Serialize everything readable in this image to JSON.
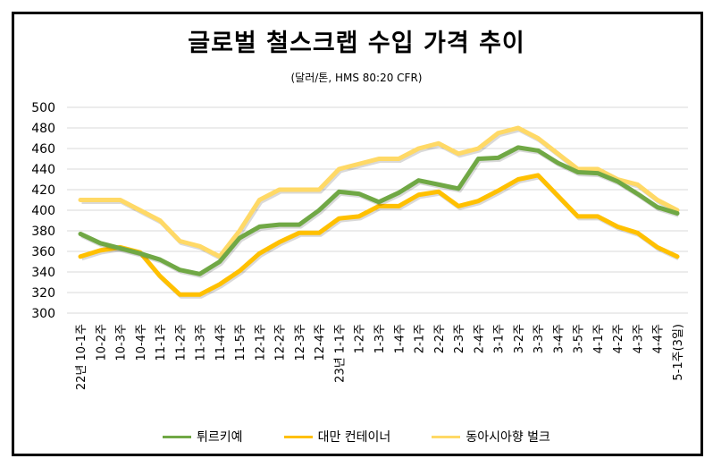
{
  "chart_data": {
    "type": "line",
    "title": "글로벌 철스크랩 수입 가격 추이",
    "subtitle": "(달러/톤, HMS 80:20  CFR)",
    "xlabel": "",
    "ylabel": "",
    "ylim": [
      300,
      500
    ],
    "yticks": [
      300,
      320,
      340,
      360,
      380,
      400,
      420,
      440,
      460,
      480,
      500
    ],
    "grid": true,
    "legend_position": "bottom",
    "categories": [
      "22년 10-1주",
      "10-2주",
      "10-3주",
      "10-4주",
      "11-1주",
      "11-2주",
      "11-3주",
      "11-4주",
      "11-5주",
      "12-1주",
      "12-2주",
      "12-3주",
      "12-4주",
      "23년 1-1주",
      "1-2주",
      "1-3주",
      "1-4주",
      "2-1주",
      "2-2주",
      "2-3주",
      "2-4주",
      "3-1주",
      "3-2주",
      "3-3주",
      "3-4주",
      "3-5주",
      "4-1주",
      "4-2주",
      "4-3주",
      "4-4주",
      "5-1주(3일)"
    ],
    "series": [
      {
        "name": "튀르키예",
        "color": "#70a845",
        "values": [
          377,
          368,
          363,
          358,
          352,
          342,
          338,
          350,
          373,
          384,
          386,
          386,
          400,
          418,
          416,
          408,
          417,
          429,
          425,
          421,
          450,
          451,
          461,
          458,
          446,
          437,
          436,
          428,
          416,
          403,
          397
        ]
      },
      {
        "name": "대만 컨테이너",
        "color": "#ffc000",
        "values": [
          355,
          361,
          364,
          359,
          336,
          318,
          318,
          328,
          341,
          358,
          369,
          378,
          378,
          392,
          394,
          404,
          404,
          415,
          418,
          404,
          409,
          419,
          430,
          434,
          414,
          394,
          394,
          384,
          378,
          364,
          355
        ]
      },
      {
        "name": "동아시아향 벌크",
        "color": "#ffd966",
        "values": [
          410,
          410,
          410,
          400,
          390,
          370,
          365,
          355,
          380,
          410,
          420,
          420,
          420,
          440,
          445,
          450,
          450,
          460,
          465,
          455,
          460,
          475,
          480,
          470,
          455,
          440,
          440,
          430,
          425,
          410,
          400
        ]
      }
    ]
  }
}
